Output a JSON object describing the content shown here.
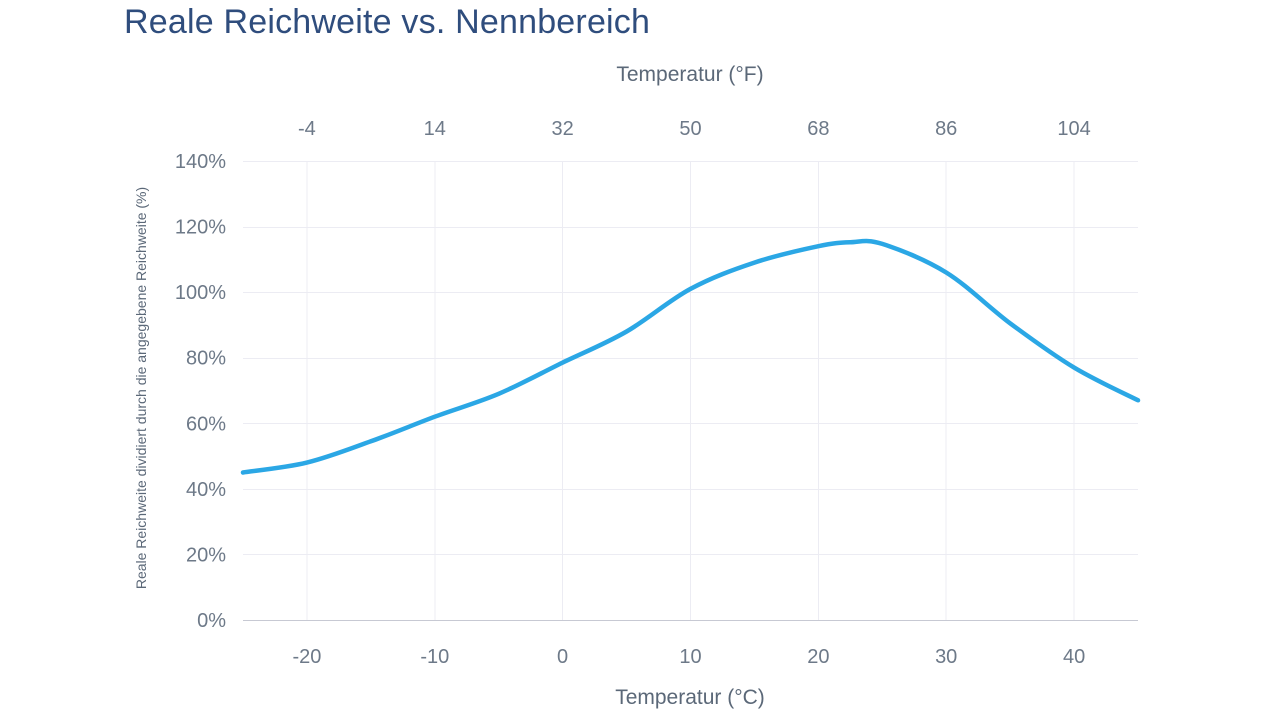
{
  "chart_data": {
    "type": "line",
    "title": "Reale Reichweite vs. Nennbereich",
    "x_axis_top": {
      "title": "Temperatur (°F)",
      "ticks": [
        -4,
        14,
        32,
        50,
        68,
        86,
        104
      ]
    },
    "x_axis_bottom": {
      "title": "Temperatur (°C)",
      "ticks": [
        -20,
        -10,
        0,
        10,
        20,
        30,
        40
      ],
      "range": [
        -25,
        45
      ]
    },
    "y_axis": {
      "title": "Reale Reichweite dividiert durch die angegebene Reichweite (%)",
      "tick_labels": [
        "0%",
        "20%",
        "40%",
        "60%",
        "80%",
        "100%",
        "120%",
        "140%"
      ],
      "tick_values": [
        0,
        20,
        40,
        60,
        80,
        100,
        120,
        140
      ],
      "range": [
        0,
        140
      ]
    },
    "grid": true,
    "legend": false,
    "series": [
      {
        "color": "#2BA7E5",
        "points": [
          [
            -25,
            45
          ],
          [
            -20,
            48
          ],
          [
            -15,
            54.5
          ],
          [
            -10,
            62
          ],
          [
            -5,
            69
          ],
          [
            0,
            78.5
          ],
          [
            5,
            88
          ],
          [
            10,
            101
          ],
          [
            15,
            109
          ],
          [
            20,
            114
          ],
          [
            22.5,
            115.2
          ],
          [
            25,
            114.7
          ],
          [
            30,
            106
          ],
          [
            35,
            90.5
          ],
          [
            40,
            77
          ],
          [
            45,
            67
          ]
        ]
      }
    ]
  },
  "colors": {
    "title": "#2F4D7D",
    "axis_title": "#5B6878",
    "tick_label": "#6D7988",
    "grid_line": "#ECECF3",
    "axis_line": "#C7C9D3",
    "series_line": "#2BA7E5",
    "background": "#FFFFFF"
  }
}
